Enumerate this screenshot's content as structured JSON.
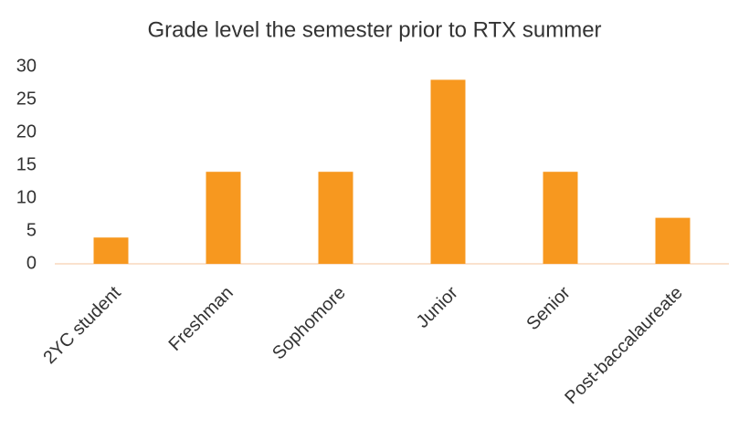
{
  "chart_data": {
    "type": "bar",
    "title": "Grade level the semester prior to RTX summer",
    "categories": [
      "2YC student",
      "Freshman",
      "Sophomore",
      "Junior",
      "Senior",
      "Post-baccalaureate"
    ],
    "values": [
      4,
      14,
      14,
      28,
      14,
      7
    ],
    "color": "#f7981f",
    "ylim": [
      0,
      30
    ],
    "yticks": [
      0,
      5,
      10,
      15,
      20,
      25,
      30
    ],
    "grid": false
  }
}
